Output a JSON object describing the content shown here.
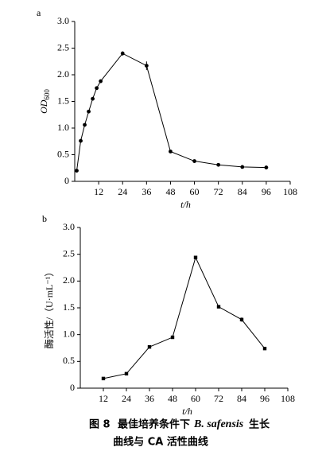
{
  "chart_data": [
    {
      "type": "line",
      "panel_label": "a",
      "xlabel": "t/h",
      "ylabel": "OD",
      "ylabel_sub": "600",
      "x": [
        1,
        3,
        5,
        7,
        9,
        11,
        13,
        24,
        36,
        48,
        60,
        72,
        84,
        96
      ],
      "series": [
        {
          "color": "#000000",
          "values": [
            0.2,
            0.76,
            1.06,
            1.31,
            1.55,
            1.75,
            1.88,
            2.4,
            2.17,
            0.56,
            0.38,
            0.31,
            0.27,
            0.26
          ],
          "errors": [
            0.02,
            0.02,
            0.02,
            0.02,
            0.02,
            0.02,
            0.02,
            0.04,
            0.08,
            0.02,
            0.02,
            0.02,
            0.02,
            0.02
          ]
        }
      ],
      "xlim": [
        0,
        108
      ],
      "xticks": [
        12,
        24,
        36,
        48,
        60,
        72,
        84,
        96,
        108
      ],
      "ylim": [
        0,
        3
      ],
      "yticks": [
        0,
        0.5,
        {
          "value": 1,
          "label": "1.0"
        },
        1.5,
        {
          "value": 2,
          "label": "2.0"
        },
        2.5,
        {
          "value": 3,
          "label": "3.0"
        }
      ]
    },
    {
      "type": "line",
      "panel_label": "b",
      "xlabel": "t/h",
      "ylabel": "酶活性/（U·mL⁻¹）",
      "x": [
        12,
        24,
        36,
        48,
        60,
        72,
        84,
        96
      ],
      "series": [
        {
          "color": "#000000",
          "values": [
            0.18,
            0.27,
            0.77,
            0.95,
            2.44,
            1.52,
            1.28,
            0.74
          ],
          "errors": [
            0.01,
            0.01,
            0.02,
            0.01,
            0.03,
            0.02,
            0.04,
            0.02
          ]
        }
      ],
      "xlim": [
        0,
        108
      ],
      "xticks": [
        12,
        24,
        36,
        48,
        60,
        72,
        84,
        96,
        108
      ],
      "ylim": [
        0,
        3
      ],
      "yticks": [
        0,
        0.5,
        {
          "value": 1,
          "label": "1.0"
        },
        1.5,
        {
          "value": 2,
          "label": "2.0"
        },
        2.5,
        {
          "value": 3,
          "label": "3.0"
        }
      ]
    }
  ],
  "caption": {
    "figure": "图 8",
    "text1": "最佳培养条件下",
    "species": "B. safensis",
    "text2": "生长",
    "line2": "曲线与 CA 活性曲线"
  }
}
